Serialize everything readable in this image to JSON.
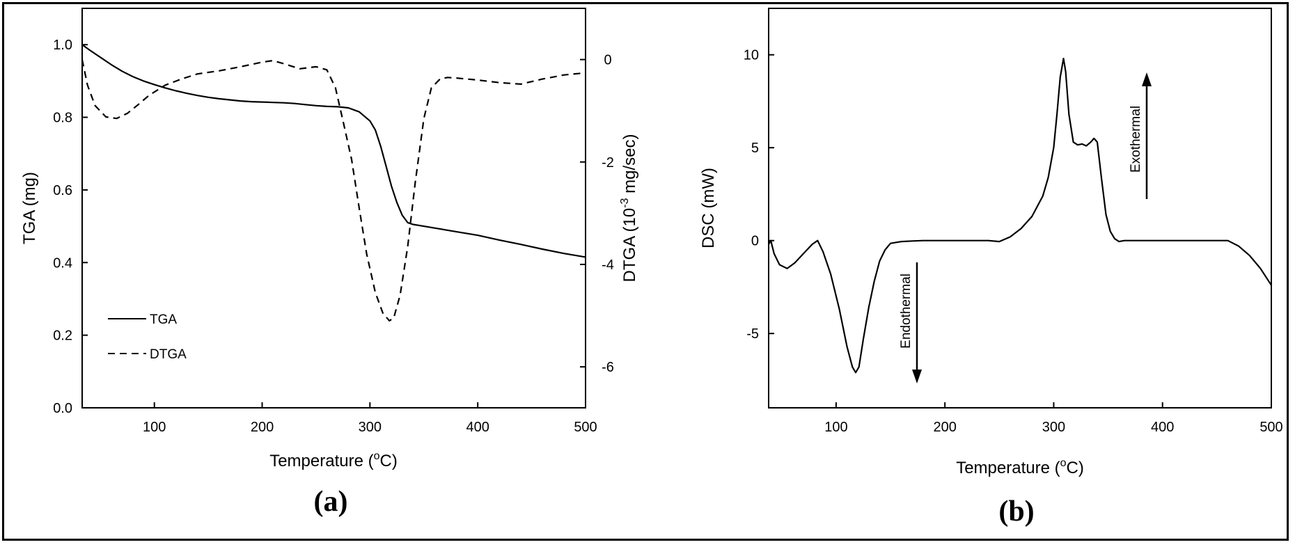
{
  "chart_data": [
    {
      "type": "line",
      "panel_label": "(a)",
      "xlabel": "Temperature (ºC)",
      "ylabel": "TGA (mg)",
      "y2label": "DTGA (10-3 mg/sec)",
      "xlim": [
        33,
        500
      ],
      "ylim": [
        0.0,
        1.1
      ],
      "y2lim": [
        -6.8,
        1.0
      ],
      "xticks": [
        100,
        200,
        300,
        400,
        500
      ],
      "yticks": [
        0.0,
        0.2,
        0.4,
        0.6,
        0.8,
        1.0
      ],
      "y2ticks": [
        -6,
        -4,
        -2,
        0
      ],
      "legend_position": "bottom-left",
      "series": [
        {
          "name": "TGA",
          "axis": "left",
          "style": "solid",
          "x": [
            33,
            40,
            50,
            60,
            70,
            80,
            90,
            100,
            110,
            120,
            130,
            140,
            150,
            160,
            170,
            180,
            190,
            200,
            210,
            220,
            230,
            240,
            250,
            260,
            270,
            280,
            290,
            300,
            305,
            310,
            315,
            320,
            325,
            330,
            335,
            340,
            350,
            360,
            380,
            400,
            420,
            440,
            460,
            480,
            500
          ],
          "values": [
            1.0,
            0.985,
            0.965,
            0.945,
            0.927,
            0.912,
            0.9,
            0.89,
            0.881,
            0.873,
            0.866,
            0.86,
            0.855,
            0.851,
            0.848,
            0.845,
            0.843,
            0.842,
            0.841,
            0.84,
            0.838,
            0.835,
            0.832,
            0.83,
            0.829,
            0.826,
            0.815,
            0.79,
            0.765,
            0.72,
            0.665,
            0.61,
            0.565,
            0.53,
            0.51,
            0.505,
            0.5,
            0.495,
            0.485,
            0.475,
            0.462,
            0.45,
            0.437,
            0.425,
            0.415
          ]
        },
        {
          "name": "DTGA",
          "axis": "right",
          "style": "dashed",
          "x": [
            33,
            38,
            45,
            55,
            65,
            75,
            85,
            95,
            110,
            125,
            140,
            160,
            180,
            200,
            210,
            220,
            235,
            250,
            260,
            268,
            275,
            283,
            290,
            297,
            305,
            312,
            318,
            322,
            328,
            335,
            342,
            350,
            357,
            365,
            372,
            380,
            400,
            420,
            440,
            460,
            480,
            500
          ],
          "values": [
            0.0,
            -0.5,
            -0.9,
            -1.12,
            -1.15,
            -1.05,
            -0.88,
            -0.7,
            -0.5,
            -0.38,
            -0.28,
            -0.22,
            -0.14,
            -0.05,
            -0.02,
            -0.08,
            -0.18,
            -0.14,
            -0.2,
            -0.55,
            -1.2,
            -1.95,
            -2.9,
            -3.8,
            -4.55,
            -4.95,
            -5.1,
            -5.05,
            -4.6,
            -3.65,
            -2.4,
            -1.15,
            -0.55,
            -0.38,
            -0.35,
            -0.36,
            -0.4,
            -0.45,
            -0.48,
            -0.38,
            -0.3,
            -0.26
          ]
        }
      ]
    },
    {
      "type": "line",
      "panel_label": "(b)",
      "xlabel": "Temperature (ºC)",
      "ylabel": "DSC (mW)",
      "xlim": [
        38,
        500
      ],
      "ylim": [
        -9,
        12.5
      ],
      "xticks": [
        100,
        200,
        300,
        400,
        500
      ],
      "yticks": [
        -5,
        0,
        5,
        10
      ],
      "ytick_labels": [
        "-5",
        "0",
        "5",
        "10"
      ],
      "annotations": [
        {
          "text": "Exothermal",
          "direction": "up"
        },
        {
          "text": "Endothermal",
          "direction": "down"
        }
      ],
      "series": [
        {
          "style": "solid",
          "x": [
            38,
            40,
            43,
            48,
            55,
            62,
            70,
            78,
            83,
            88,
            95,
            103,
            110,
            115,
            118,
            121,
            125,
            130,
            135,
            140,
            145,
            150,
            160,
            170,
            180,
            200,
            220,
            240,
            250,
            260,
            270,
            280,
            290,
            295,
            300,
            303,
            306,
            309,
            311,
            314,
            318,
            322,
            326,
            330,
            334,
            337,
            340,
            344,
            348,
            352,
            356,
            360,
            365,
            380,
            400,
            420,
            440,
            460,
            470,
            480,
            490,
            500
          ],
          "values": [
            -0.2,
            0.0,
            -0.7,
            -1.3,
            -1.5,
            -1.2,
            -0.7,
            -0.2,
            0.0,
            -0.6,
            -1.8,
            -3.7,
            -5.7,
            -6.8,
            -7.1,
            -6.8,
            -5.3,
            -3.6,
            -2.2,
            -1.1,
            -0.5,
            -0.15,
            -0.05,
            -0.02,
            0.0,
            0.0,
            0.0,
            0.0,
            -0.05,
            0.2,
            0.65,
            1.3,
            2.4,
            3.4,
            5.0,
            6.8,
            8.8,
            9.8,
            9.1,
            6.8,
            5.3,
            5.15,
            5.2,
            5.1,
            5.3,
            5.5,
            5.3,
            3.3,
            1.4,
            0.5,
            0.1,
            -0.05,
            0.0,
            0.0,
            0.0,
            0.0,
            0.0,
            0.0,
            -0.3,
            -0.8,
            -1.5,
            -2.4
          ]
        }
      ]
    }
  ]
}
